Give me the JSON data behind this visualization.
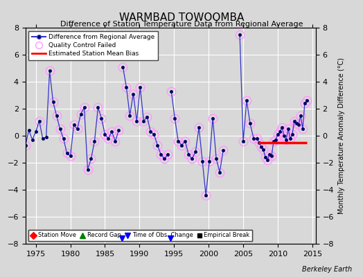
{
  "title": "WARMBAD TOWOOMBA",
  "subtitle": "Difference of Station Temperature Data from Regional Average",
  "ylabel_right": "Monthly Temperature Anomaly Difference (°C)",
  "xlim": [
    1973.5,
    2015.5
  ],
  "ylim": [
    -8,
    8
  ],
  "yticks": [
    -8,
    -6,
    -4,
    -2,
    0,
    2,
    4,
    6,
    8
  ],
  "xticks": [
    1975,
    1980,
    1985,
    1990,
    1995,
    2000,
    2005,
    2010,
    2015
  ],
  "background_color": "#d8d8d8",
  "plot_bg_color": "#d8d8d8",
  "grid_color": "#ffffff",
  "watermark": "Berkeley Earth",
  "bias_segments": [
    {
      "x_start": 2007.2,
      "x_end": 2014.2,
      "y": -0.5
    }
  ],
  "time_obs_years": [
    1987.5,
    1994.5
  ],
  "segment1_years": [
    1973.5,
    1974.0,
    1974.5,
    1975.0,
    1975.5,
    1976.0,
    1976.5,
    1977.0,
    1977.5,
    1978.0,
    1978.5,
    1979.0,
    1979.5,
    1980.0,
    1980.5,
    1981.0,
    1981.5,
    1982.0,
    1982.5,
    1983.0,
    1983.5,
    1984.0,
    1984.5,
    1985.0,
    1985.5,
    1986.0,
    1986.5,
    1987.0
  ],
  "segment1_vals": [
    -0.7,
    0.4,
    -0.3,
    0.3,
    1.1,
    -0.2,
    -0.1,
    4.8,
    2.5,
    1.5,
    0.5,
    -0.2,
    -1.3,
    -1.5,
    0.8,
    0.5,
    1.6,
    2.1,
    -2.5,
    -1.7,
    -0.4,
    2.1,
    1.3,
    0.1,
    -0.2,
    0.3,
    -0.4,
    0.4
  ],
  "segment1_qc": [
    1,
    0,
    0,
    0,
    1,
    0,
    0,
    1,
    1,
    1,
    1,
    1,
    1,
    1,
    1,
    1,
    1,
    1,
    1,
    1,
    1,
    1,
    1,
    1,
    1,
    1,
    1,
    1
  ],
  "segment2_years": [
    1987.6,
    1988.1,
    1988.6,
    1989.1,
    1989.6,
    1990.1,
    1990.6,
    1991.1,
    1991.6,
    1992.1,
    1992.6,
    1993.1,
    1993.6,
    1994.1
  ],
  "segment2_vals": [
    5.1,
    3.6,
    1.5,
    3.1,
    1.1,
    3.6,
    1.1,
    1.4,
    0.3,
    0.1,
    -0.7,
    -1.4,
    -1.7,
    -1.4
  ],
  "segment2_qc": [
    1,
    1,
    1,
    1,
    1,
    1,
    1,
    1,
    1,
    1,
    1,
    1,
    1,
    1
  ],
  "segment3_years": [
    1994.6,
    1995.1,
    1995.6,
    1996.1,
    1996.6,
    1997.1,
    1997.6,
    1998.1,
    1998.6,
    1999.1,
    1999.6,
    2000.1,
    2000.6,
    2001.1,
    2001.6,
    2002.1
  ],
  "segment3_vals": [
    3.3,
    1.3,
    -0.4,
    -0.7,
    -0.4,
    -1.4,
    -1.7,
    -1.2,
    0.6,
    -1.9,
    -4.4,
    -1.9,
    1.3,
    -1.7,
    -2.7,
    -1.1
  ],
  "segment3_qc": [
    1,
    1,
    1,
    1,
    1,
    1,
    1,
    1,
    1,
    1,
    1,
    1,
    1,
    1,
    1,
    1
  ],
  "segment4_years": [
    2004.5,
    2005.0,
    2005.5,
    2006.0,
    2006.5
  ],
  "segment4_vals": [
    7.5,
    -0.4,
    2.6,
    0.9,
    -0.2
  ],
  "segment4_qc": [
    1,
    1,
    1,
    1,
    1
  ],
  "segment5_years": [
    2007.0,
    2007.3,
    2007.6,
    2007.9,
    2008.2,
    2008.5,
    2008.8,
    2009.1,
    2009.4,
    2009.7,
    2010.0,
    2010.3,
    2010.6,
    2010.9,
    2011.2,
    2011.5,
    2011.8,
    2012.1,
    2012.4,
    2012.7,
    2013.0,
    2013.3,
    2013.6,
    2013.9,
    2014.2
  ],
  "segment5_vals": [
    -0.2,
    -0.5,
    -0.8,
    -1.0,
    -1.6,
    -1.8,
    -1.4,
    -1.5,
    -0.4,
    -0.3,
    0.1,
    0.3,
    0.6,
    0.0,
    -0.3,
    0.5,
    -0.2,
    0.1,
    1.1,
    0.9,
    0.8,
    1.5,
    0.5,
    2.4,
    2.6
  ],
  "segment5_qc": [
    1,
    1,
    1,
    1,
    1,
    1,
    1,
    1,
    1,
    1,
    1,
    1,
    1,
    1,
    1,
    1,
    1,
    1,
    1,
    1,
    1,
    1,
    1,
    1,
    1
  ],
  "line_color": "#3333cc",
  "dot_color": "#000060",
  "qc_color": "#ff99ff",
  "bias_color": "#ff0000",
  "bias_lw": 2.5,
  "line_lw": 0.9,
  "dot_size": 3,
  "qc_size": 9
}
